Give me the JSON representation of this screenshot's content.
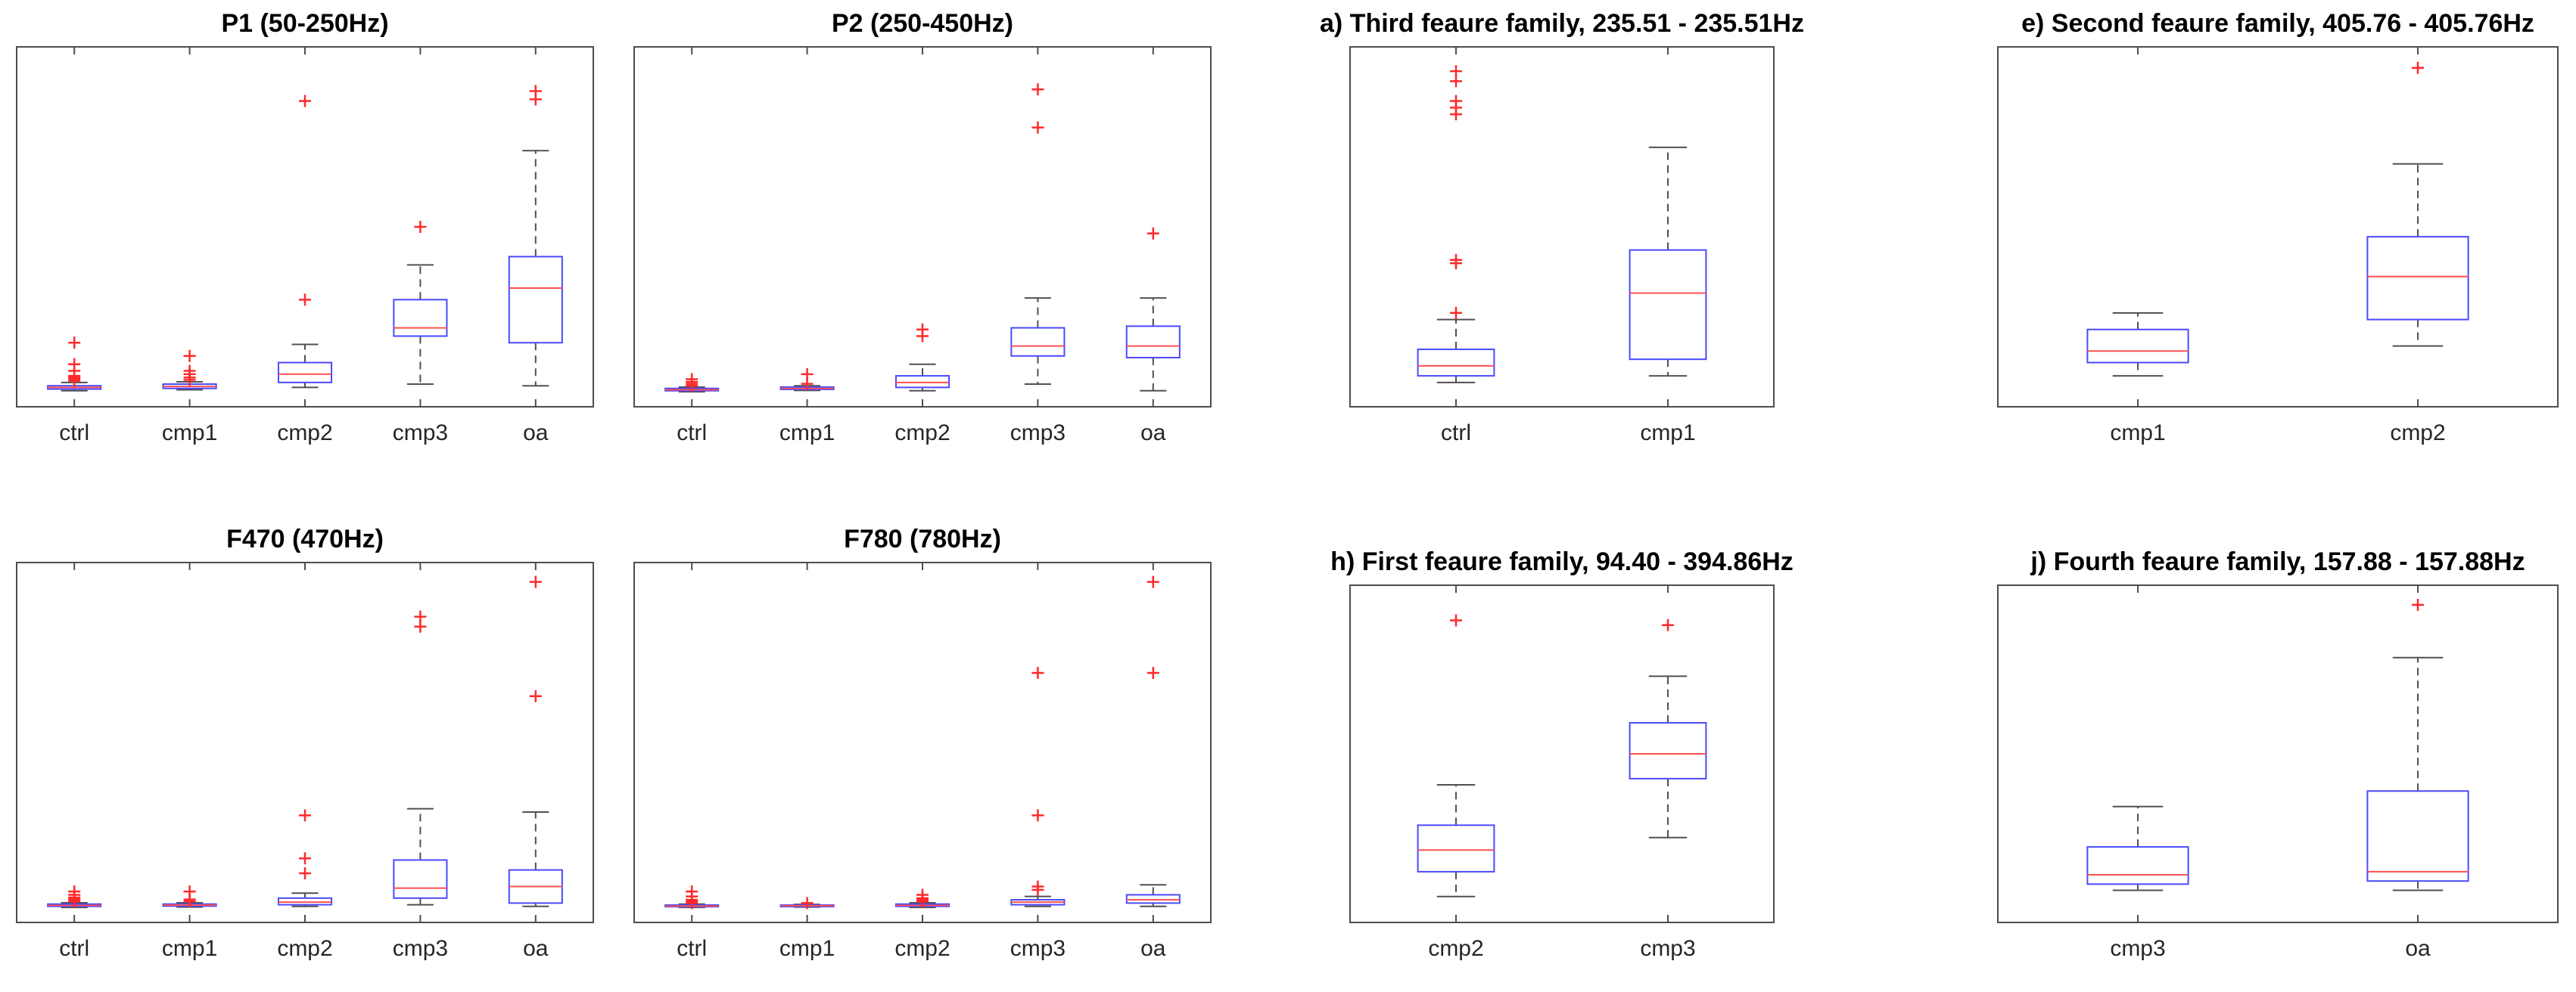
{
  "figure": {
    "description_title": "Box plots of features per group"
  },
  "colors": {
    "box": "#4a4aff",
    "median": "#ff5050",
    "whisker": "#505050",
    "outlier": "#ff2a2a",
    "axes": "#4d4d4d",
    "text": "#262626"
  },
  "chart_data": [
    {
      "type": "box",
      "title": "P1 (50-250Hz)",
      "categories": [
        "ctrl",
        "cmp1",
        "cmp2",
        "cmp3",
        "oa"
      ],
      "ylim": [
        0,
        100
      ],
      "stats": [
        {
          "min": 0.5,
          "q1": 1.0,
          "median": 1.5,
          "q3": 2.0,
          "max": 3.0,
          "outliers": [
            3.5,
            4.0,
            4.5,
            5.0,
            6.5,
            8.5,
            15.0
          ]
        },
        {
          "min": 0.8,
          "q1": 1.2,
          "median": 1.8,
          "q3": 2.5,
          "max": 3.2,
          "outliers": [
            3.8,
            4.5,
            5.5,
            6.5,
            11.0
          ]
        },
        {
          "min": 1.5,
          "q1": 3.0,
          "median": 5.5,
          "q3": 9.0,
          "max": 14.5,
          "outliers": [
            28.0,
            88.0
          ]
        },
        {
          "min": 2.5,
          "q1": 17.0,
          "median": 19.5,
          "q3": 28.0,
          "max": 38.5,
          "outliers": [
            50.0
          ]
        },
        {
          "min": 2.0,
          "q1": 15.0,
          "median": 31.5,
          "q3": 41.0,
          "max": 73.0,
          "outliers": [
            88.5,
            91.0
          ]
        }
      ]
    },
    {
      "type": "box",
      "title": "P2 (250-450Hz)",
      "categories": [
        "ctrl",
        "cmp1",
        "cmp2",
        "cmp3",
        "oa"
      ],
      "ylim": [
        0,
        100
      ],
      "stats": [
        {
          "min": 0.2,
          "q1": 0.5,
          "median": 0.8,
          "q3": 1.2,
          "max": 1.6,
          "outliers": [
            2.0,
            2.6,
            3.2,
            4.0
          ]
        },
        {
          "min": 0.6,
          "q1": 0.9,
          "median": 1.2,
          "q3": 1.6,
          "max": 2.0,
          "outliers": [
            2.6,
            5.5
          ]
        },
        {
          "min": 0.5,
          "q1": 1.5,
          "median": 3.0,
          "q3": 5.0,
          "max": 8.5,
          "outliers": [
            17.0,
            19.0
          ]
        },
        {
          "min": 2.5,
          "q1": 11.0,
          "median": 14.0,
          "q3": 19.5,
          "max": 28.5,
          "outliers": [
            80.0,
            91.5
          ]
        },
        {
          "min": 0.5,
          "q1": 10.5,
          "median": 14.0,
          "q3": 20.0,
          "max": 28.5,
          "outliers": [
            48.0
          ]
        }
      ]
    },
    {
      "type": "box",
      "title": "a) Third feaure family, 235.51 - 235.51Hz",
      "categories": [
        "ctrl",
        "cmp1"
      ],
      "ylim": [
        0,
        100
      ],
      "stats": [
        {
          "min": 3.0,
          "q1": 5.0,
          "median": 8.0,
          "q3": 13.0,
          "max": 22.0,
          "outliers": [
            24.0,
            39.0,
            40.0,
            84.0,
            86.0,
            88.0,
            94.0,
            97.0
          ]
        },
        {
          "min": 5.0,
          "q1": 10.0,
          "median": 30.0,
          "q3": 43.0,
          "max": 74.0,
          "outliers": []
        }
      ]
    },
    {
      "type": "box",
      "title": "e) Second feaure family, 405.76 - 405.76Hz",
      "categories": [
        "cmp1",
        "cmp2"
      ],
      "ylim": [
        0,
        100
      ],
      "stats": [
        {
          "min": 5.0,
          "q1": 9.0,
          "median": 12.5,
          "q3": 19.0,
          "max": 24.0,
          "outliers": []
        },
        {
          "min": 14.0,
          "q1": 22.0,
          "median": 35.0,
          "q3": 47.0,
          "max": 69.0,
          "outliers": [
            98.0
          ]
        }
      ]
    },
    {
      "type": "box",
      "title": "F470 (470Hz)",
      "categories": [
        "ctrl",
        "cmp1",
        "cmp2",
        "cmp3",
        "oa"
      ],
      "ylim": [
        0,
        100
      ],
      "stats": [
        {
          "min": 0.2,
          "q1": 0.5,
          "median": 0.8,
          "q3": 1.2,
          "max": 1.6,
          "outliers": [
            2.0,
            2.4,
            2.8,
            3.2,
            4.0,
            5.0
          ]
        },
        {
          "min": 0.3,
          "q1": 0.6,
          "median": 0.9,
          "q3": 1.2,
          "max": 1.6,
          "outliers": [
            2.0,
            2.6,
            5.0
          ]
        },
        {
          "min": 0.5,
          "q1": 1.0,
          "median": 1.8,
          "q3": 3.0,
          "max": 4.5,
          "outliers": [
            10.5,
            15.0,
            28.0
          ]
        },
        {
          "min": 1.0,
          "q1": 3.0,
          "median": 6.0,
          "q3": 14.5,
          "max": 30.0,
          "outliers": [
            85.0,
            88.0
          ]
        },
        {
          "min": 0.5,
          "q1": 1.5,
          "median": 6.5,
          "q3": 11.5,
          "max": 29.0,
          "outliers": [
            64.0,
            98.5
          ]
        }
      ]
    },
    {
      "type": "box",
      "title": "F780 (780Hz)",
      "categories": [
        "ctrl",
        "cmp1",
        "cmp2",
        "cmp3",
        "oa"
      ],
      "ylim": [
        0,
        100
      ],
      "stats": [
        {
          "min": 0.2,
          "q1": 0.4,
          "median": 0.6,
          "q3": 0.9,
          "max": 1.2,
          "outliers": [
            1.5,
            2.0,
            2.5,
            3.5,
            5.0
          ]
        },
        {
          "min": 0.3,
          "q1": 0.5,
          "median": 0.7,
          "q3": 0.9,
          "max": 1.1,
          "outliers": [
            1.5
          ]
        },
        {
          "min": 0.2,
          "q1": 0.5,
          "median": 0.8,
          "q3": 1.2,
          "max": 1.6,
          "outliers": [
            2.0,
            2.5,
            3.0,
            4.0
          ]
        },
        {
          "min": 0.5,
          "q1": 1.0,
          "median": 1.8,
          "q3": 2.5,
          "max": 3.5,
          "outliers": [
            5.5,
            6.5,
            28.0,
            71.0
          ]
        },
        {
          "min": 0.5,
          "q1": 1.5,
          "median": 2.5,
          "q3": 4.0,
          "max": 7.0,
          "outliers": [
            71.0,
            98.5
          ]
        }
      ]
    },
    {
      "type": "box",
      "title": "h) First feaure family, 94.40 - 394.86Hz",
      "categories": [
        "cmp2",
        "cmp3"
      ],
      "ylim": [
        0,
        100
      ],
      "stats": [
        {
          "min": 4.0,
          "q1": 12.0,
          "median": 19.0,
          "q3": 27.0,
          "max": 40.0,
          "outliers": [
            93.0
          ]
        },
        {
          "min": 23.0,
          "q1": 42.0,
          "median": 50.0,
          "q3": 60.0,
          "max": 75.0,
          "outliers": [
            91.5
          ]
        }
      ]
    },
    {
      "type": "box",
      "title": "j) Fourth feaure family, 157.88 - 157.88Hz",
      "categories": [
        "cmp3",
        "oa"
      ],
      "ylim": [
        0,
        100
      ],
      "stats": [
        {
          "min": 6.0,
          "q1": 8.0,
          "median": 11.0,
          "q3": 20.0,
          "max": 33.0,
          "outliers": []
        },
        {
          "min": 6.0,
          "q1": 9.0,
          "median": 12.0,
          "q3": 38.0,
          "max": 81.0,
          "outliers": [
            98.0
          ]
        }
      ]
    }
  ]
}
